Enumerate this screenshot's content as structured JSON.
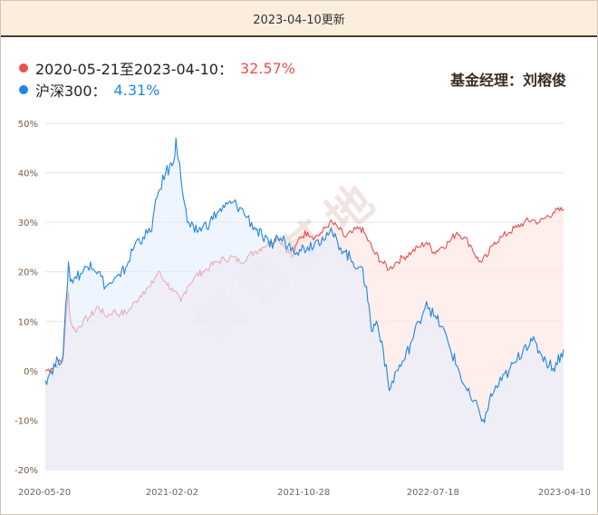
{
  "header": {
    "title": "2023-04-10更新"
  },
  "legend": {
    "fund": {
      "label": "2020-05-21至2023-04-10：",
      "value": "32.57%",
      "color": "#e8514e"
    },
    "index": {
      "label": "沪深300：",
      "value": "4.31%",
      "color": "#1f86e6"
    }
  },
  "manager": "基金经理：刘榕俊",
  "watermark": "搞钱基地",
  "chart_data": {
    "type": "area",
    "ylim": [
      -20,
      50
    ],
    "yticks": [
      "50%",
      "40%",
      "30%",
      "20%",
      "10%",
      "0%",
      "-10%",
      "-20%"
    ],
    "ytick_values": [
      50,
      40,
      30,
      20,
      10,
      0,
      -10,
      -20
    ],
    "xticks": [
      "2020-05-20",
      "2021-02-02",
      "2021-10-28",
      "2022-07-18",
      "2023-04-10"
    ],
    "x_range": [
      "2020-05-20",
      "2023-04-10"
    ],
    "grid": true,
    "series": [
      {
        "name": "2020-05-21至2023-04-10",
        "color": "#e8514e",
        "fill": "#fde8e6",
        "final": 32.57,
        "points": [
          [
            "2020-05-20",
            0
          ],
          [
            "2020-06-01",
            0.5
          ],
          [
            "2020-06-15",
            1.5
          ],
          [
            "2020-06-25",
            2
          ],
          [
            "2020-07-03",
            13
          ],
          [
            "2020-07-06",
            16
          ],
          [
            "2020-07-10",
            10
          ],
          [
            "2020-07-20",
            8
          ],
          [
            "2020-08-05",
            10
          ],
          [
            "2020-08-20",
            11
          ],
          [
            "2020-09-05",
            13
          ],
          [
            "2020-09-20",
            11
          ],
          [
            "2020-10-05",
            12
          ],
          [
            "2020-10-20",
            11.5
          ],
          [
            "2020-11-05",
            12
          ],
          [
            "2020-11-20",
            14
          ],
          [
            "2020-12-05",
            16
          ],
          [
            "2020-12-20",
            17
          ],
          [
            "2021-01-05",
            20
          ],
          [
            "2021-01-20",
            18
          ],
          [
            "2021-02-05",
            16
          ],
          [
            "2021-02-20",
            14
          ],
          [
            "2021-03-05",
            17
          ],
          [
            "2021-03-20",
            19
          ],
          [
            "2021-04-05",
            20
          ],
          [
            "2021-04-20",
            21
          ],
          [
            "2021-05-05",
            22
          ],
          [
            "2021-05-20",
            22.5
          ],
          [
            "2021-06-05",
            23
          ],
          [
            "2021-06-20",
            22
          ],
          [
            "2021-07-05",
            23
          ],
          [
            "2021-07-20",
            24
          ],
          [
            "2021-08-05",
            25
          ],
          [
            "2021-08-20",
            26
          ],
          [
            "2021-09-05",
            27
          ],
          [
            "2021-09-20",
            25
          ],
          [
            "2021-10-05",
            23
          ],
          [
            "2021-10-20",
            27
          ],
          [
            "2021-11-05",
            28
          ],
          [
            "2021-11-20",
            27
          ],
          [
            "2021-12-05",
            28
          ],
          [
            "2021-12-20",
            30
          ],
          [
            "2022-01-05",
            29
          ],
          [
            "2022-01-20",
            27
          ],
          [
            "2022-02-05",
            28
          ],
          [
            "2022-02-20",
            29
          ],
          [
            "2022-03-05",
            27
          ],
          [
            "2022-03-20",
            24
          ],
          [
            "2022-04-05",
            22
          ],
          [
            "2022-04-20",
            20.5
          ],
          [
            "2022-05-05",
            22
          ],
          [
            "2022-05-20",
            23
          ],
          [
            "2022-06-05",
            24
          ],
          [
            "2022-06-20",
            25
          ],
          [
            "2022-07-05",
            26
          ],
          [
            "2022-07-20",
            24
          ],
          [
            "2022-08-05",
            25
          ],
          [
            "2022-08-20",
            26
          ],
          [
            "2022-09-05",
            28
          ],
          [
            "2022-09-20",
            27
          ],
          [
            "2022-10-05",
            25
          ],
          [
            "2022-10-20",
            22
          ],
          [
            "2022-11-05",
            23
          ],
          [
            "2022-11-20",
            26
          ],
          [
            "2022-12-05",
            27
          ],
          [
            "2022-12-20",
            28
          ],
          [
            "2023-01-05",
            29
          ],
          [
            "2023-01-20",
            30
          ],
          [
            "2023-02-05",
            30.5
          ],
          [
            "2023-02-20",
            30
          ],
          [
            "2023-03-05",
            31
          ],
          [
            "2023-03-20",
            32
          ],
          [
            "2023-04-10",
            32.57
          ]
        ]
      },
      {
        "name": "沪深300",
        "color": "#1f86e6",
        "fill": "#e4efff",
        "final": 4.31,
        "points": [
          [
            "2020-05-20",
            -2
          ],
          [
            "2020-06-01",
            0
          ],
          [
            "2020-06-15",
            2
          ],
          [
            "2020-06-25",
            3
          ],
          [
            "2020-07-03",
            16
          ],
          [
            "2020-07-06",
            22
          ],
          [
            "2020-07-10",
            18
          ],
          [
            "2020-07-20",
            19
          ],
          [
            "2020-08-05",
            20
          ],
          [
            "2020-08-20",
            22
          ],
          [
            "2020-09-05",
            20
          ],
          [
            "2020-09-20",
            17
          ],
          [
            "2020-10-05",
            18
          ],
          [
            "2020-10-20",
            19
          ],
          [
            "2020-11-05",
            22
          ],
          [
            "2020-11-20",
            26
          ],
          [
            "2020-12-05",
            27
          ],
          [
            "2020-12-20",
            28
          ],
          [
            "2021-01-05",
            36
          ],
          [
            "2021-01-20",
            40
          ],
          [
            "2021-02-05",
            42
          ],
          [
            "2021-02-10",
            47
          ],
          [
            "2021-02-20",
            39
          ],
          [
            "2021-03-05",
            30
          ],
          [
            "2021-03-20",
            28
          ],
          [
            "2021-04-05",
            29
          ],
          [
            "2021-04-20",
            30
          ],
          [
            "2021-05-05",
            32
          ],
          [
            "2021-05-20",
            33
          ],
          [
            "2021-06-05",
            34
          ],
          [
            "2021-06-20",
            33
          ],
          [
            "2021-07-05",
            31
          ],
          [
            "2021-07-20",
            29
          ],
          [
            "2021-08-05",
            27
          ],
          [
            "2021-08-20",
            25
          ],
          [
            "2021-09-05",
            27
          ],
          [
            "2021-09-20",
            26
          ],
          [
            "2021-10-05",
            25
          ],
          [
            "2021-10-20",
            24.5
          ],
          [
            "2021-11-05",
            25
          ],
          [
            "2021-11-20",
            26
          ],
          [
            "2021-12-05",
            27
          ],
          [
            "2021-12-20",
            28
          ],
          [
            "2022-01-05",
            26
          ],
          [
            "2022-01-20",
            24
          ],
          [
            "2022-02-05",
            22
          ],
          [
            "2022-02-20",
            21
          ],
          [
            "2022-03-05",
            17
          ],
          [
            "2022-03-15",
            8
          ],
          [
            "2022-03-25",
            10
          ],
          [
            "2022-04-05",
            6
          ],
          [
            "2022-04-20",
            -4
          ],
          [
            "2022-05-05",
            0
          ],
          [
            "2022-05-20",
            2
          ],
          [
            "2022-06-05",
            6
          ],
          [
            "2022-06-20",
            10
          ],
          [
            "2022-07-05",
            14
          ],
          [
            "2022-07-20",
            11
          ],
          [
            "2022-08-05",
            9
          ],
          [
            "2022-08-20",
            5
          ],
          [
            "2022-09-05",
            1
          ],
          [
            "2022-09-20",
            -3
          ],
          [
            "2022-10-05",
            -6
          ],
          [
            "2022-10-20",
            -8
          ],
          [
            "2022-10-31",
            -10.5
          ],
          [
            "2022-11-10",
            -6
          ],
          [
            "2022-11-20",
            -4
          ],
          [
            "2022-12-05",
            -2
          ],
          [
            "2022-12-20",
            0
          ],
          [
            "2023-01-05",
            2
          ],
          [
            "2023-01-20",
            5
          ],
          [
            "2023-02-05",
            6
          ],
          [
            "2023-02-20",
            4
          ],
          [
            "2023-03-05",
            2
          ],
          [
            "2023-03-20",
            0.5
          ],
          [
            "2023-04-10",
            4.31
          ]
        ]
      }
    ]
  }
}
